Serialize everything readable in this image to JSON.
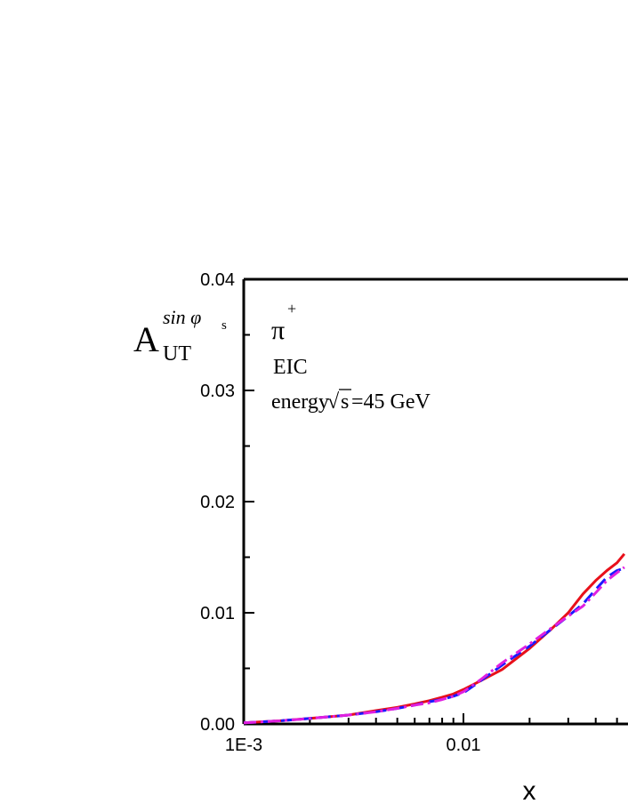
{
  "chart_data": {
    "type": "line",
    "xscale": "log",
    "xlim": [
      0.001,
      0.054
    ],
    "ylim": [
      0.0,
      0.04
    ],
    "xlabel": "x",
    "ylabel": {
      "main": "A",
      "subscript": "UT",
      "superscript": "sin φ",
      "superscript_sub": "s"
    },
    "x_ticks": [
      {
        "value": 0.001,
        "label": "1E-3"
      },
      {
        "value": 0.01,
        "label": "0.01"
      }
    ],
    "y_ticks": [
      {
        "value": 0.0,
        "label": "0.00"
      },
      {
        "value": 0.01,
        "label": "0.01"
      },
      {
        "value": 0.02,
        "label": "0.02"
      },
      {
        "value": 0.03,
        "label": "0.03"
      },
      {
        "value": 0.04,
        "label": "0.04"
      }
    ],
    "annotations": {
      "particle": "π",
      "particle_charge": "+",
      "experiment": "EIC",
      "energy_prefix": "energy",
      "energy_sqrt_symbol": "√",
      "energy_sqrt_arg": "s",
      "energy_value": " =45 GeV"
    },
    "grid": false,
    "series": [
      {
        "color": "#e8101a",
        "dash": "solid",
        "x": [
          0.001,
          0.0015,
          0.002,
          0.003,
          0.004,
          0.005,
          0.006,
          0.007,
          0.008,
          0.009,
          0.01,
          0.012,
          0.015,
          0.02,
          0.025,
          0.03,
          0.035,
          0.04,
          0.045,
          0.05,
          0.054
        ],
        "y": [
          0.0001,
          0.0003,
          0.0005,
          0.0008,
          0.0012,
          0.0015,
          0.0018,
          0.0021,
          0.0024,
          0.0027,
          0.0031,
          0.0039,
          0.0049,
          0.0068,
          0.0085,
          0.01,
          0.0117,
          0.0129,
          0.0138,
          0.0145,
          0.0153
        ]
      },
      {
        "color": "#1a1aff",
        "dash": "dash",
        "x": [
          0.001,
          0.0015,
          0.002,
          0.003,
          0.004,
          0.005,
          0.006,
          0.007,
          0.008,
          0.009,
          0.01,
          0.012,
          0.015,
          0.02,
          0.025,
          0.03,
          0.035,
          0.04,
          0.045,
          0.05,
          0.054
        ],
        "y": [
          0.0001,
          0.0003,
          0.0005,
          0.0008,
          0.0011,
          0.0014,
          0.0017,
          0.002,
          0.0022,
          0.0025,
          0.0028,
          0.0039,
          0.0053,
          0.007,
          0.0085,
          0.0097,
          0.0108,
          0.0121,
          0.0132,
          0.0138,
          0.014
        ]
      },
      {
        "color": "#e020e0",
        "dash": "dashdot",
        "x": [
          0.001,
          0.0015,
          0.002,
          0.003,
          0.004,
          0.005,
          0.006,
          0.007,
          0.008,
          0.009,
          0.01,
          0.012,
          0.015,
          0.02,
          0.025,
          0.03,
          0.035,
          0.04,
          0.045,
          0.05,
          0.054
        ],
        "y": [
          0.0001,
          0.0003,
          0.0005,
          0.0008,
          0.0011,
          0.0014,
          0.0017,
          0.0019,
          0.0022,
          0.0025,
          0.0029,
          0.004,
          0.0055,
          0.0072,
          0.0086,
          0.0097,
          0.0106,
          0.0118,
          0.0129,
          0.0136,
          0.0141
        ]
      }
    ]
  }
}
